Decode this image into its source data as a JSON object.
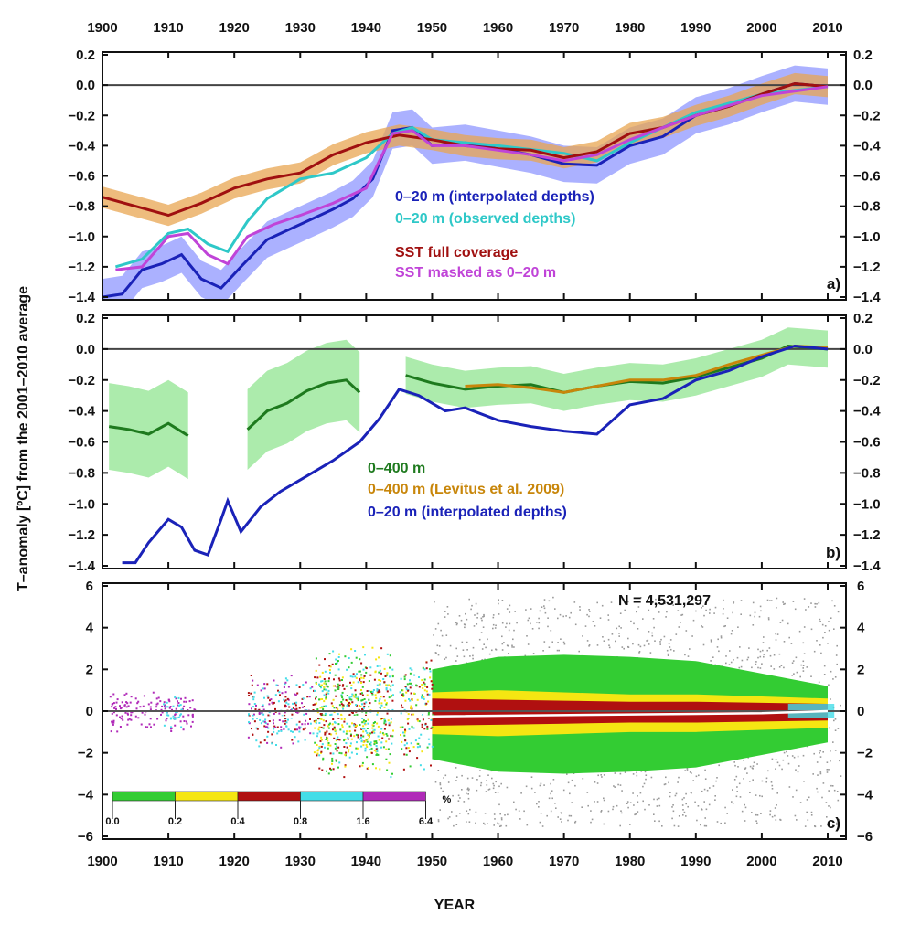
{
  "chart_data": {
    "type": "line",
    "xlabel": "YEAR",
    "ylabel": "T–anomaly [ºC] from the 2001–2010 average",
    "xlim": [
      1900,
      2010
    ],
    "x_ticks": [
      1900,
      1910,
      1920,
      1930,
      1940,
      1950,
      1960,
      1970,
      1980,
      1990,
      2000,
      2010
    ],
    "panels": [
      {
        "label": "a)",
        "ylim": [
          -1.4,
          0.2
        ],
        "y_ticks": [
          0.2,
          0.0,
          -0.2,
          -0.4,
          -0.6,
          -0.8,
          -1.0,
          -1.2,
          -1.4
        ],
        "series": [
          {
            "name": "0–20 m (interpolated depths)",
            "color": "#1a22b8",
            "band": "#8f97ff",
            "x": [
              1900,
              1903,
              1906,
              1909,
              1912,
              1915,
              1918,
              1921,
              1925,
              1930,
              1935,
              1938,
              1941,
              1944,
              1947,
              1950,
              1955,
              1960,
              1965,
              1970,
              1975,
              1980,
              1985,
              1990,
              1995,
              2000,
              2005,
              2010
            ],
            "y": [
              -1.4,
              -1.38,
              -1.22,
              -1.18,
              -1.12,
              -1.28,
              -1.34,
              -1.2,
              -1.02,
              -0.92,
              -0.82,
              -0.75,
              -0.62,
              -0.3,
              -0.28,
              -0.4,
              -0.38,
              -0.42,
              -0.46,
              -0.52,
              -0.53,
              -0.4,
              -0.34,
              -0.2,
              -0.14,
              -0.06,
              0.01,
              -0.01
            ]
          },
          {
            "name": "0–20 m (observed depths)",
            "color": "#2ec8c8",
            "x": [
              1902,
              1906,
              1910,
              1913,
              1916,
              1919,
              1922,
              1925,
              1930,
              1935,
              1940,
              1944,
              1947,
              1950,
              1960,
              1970,
              1975,
              1980,
              1990,
              2000,
              2010
            ],
            "y": [
              -1.2,
              -1.15,
              -0.98,
              -0.95,
              -1.05,
              -1.1,
              -0.9,
              -0.75,
              -0.62,
              -0.58,
              -0.48,
              -0.32,
              -0.28,
              -0.36,
              -0.4,
              -0.45,
              -0.5,
              -0.38,
              -0.18,
              -0.06,
              -0.01
            ]
          },
          {
            "name": "SST full coverage",
            "color": "#a01010",
            "band": "#e8a552",
            "x": [
              1900,
              1905,
              1910,
              1915,
              1920,
              1925,
              1930,
              1935,
              1940,
              1945,
              1950,
              1955,
              1960,
              1965,
              1970,
              1975,
              1980,
              1985,
              1990,
              1995,
              2000,
              2005,
              2010
            ],
            "y": [
              -0.74,
              -0.8,
              -0.86,
              -0.78,
              -0.68,
              -0.62,
              -0.58,
              -0.46,
              -0.38,
              -0.33,
              -0.36,
              -0.4,
              -0.42,
              -0.43,
              -0.48,
              -0.44,
              -0.32,
              -0.28,
              -0.2,
              -0.14,
              -0.06,
              0.01,
              -0.01
            ]
          },
          {
            "name": "SST masked as 0–20 m",
            "color": "#c044d8",
            "x": [
              1902,
              1906,
              1910,
              1913,
              1916,
              1919,
              1922,
              1926,
              1930,
              1935,
              1940,
              1944,
              1947,
              1950,
              1955,
              1960,
              1965,
              1970,
              1975,
              1980,
              1990,
              2000,
              2010
            ],
            "y": [
              -1.22,
              -1.2,
              -1.0,
              -0.98,
              -1.12,
              -1.18,
              -1.0,
              -0.92,
              -0.86,
              -0.78,
              -0.68,
              -0.32,
              -0.3,
              -0.4,
              -0.4,
              -0.43,
              -0.46,
              -0.5,
              -0.46,
              -0.36,
              -0.2,
              -0.07,
              -0.01
            ]
          }
        ]
      },
      {
        "label": "b)",
        "ylim": [
          -1.4,
          0.2
        ],
        "y_ticks": [
          0.2,
          0.0,
          -0.2,
          -0.4,
          -0.6,
          -0.8,
          -1.0,
          -1.2,
          -1.4
        ],
        "series": [
          {
            "name": "0–400 m",
            "color": "#1e7a1e",
            "band": "#9ee89e",
            "segments": [
              {
                "x": [
                  1901,
                  1904,
                  1907,
                  1910,
                  1913
                ],
                "y": [
                  -0.5,
                  -0.52,
                  -0.55,
                  -0.48,
                  -0.56
                ]
              },
              {
                "x": [
                  1922,
                  1925,
                  1928,
                  1931,
                  1934,
                  1937,
                  1939
                ],
                "y": [
                  -0.52,
                  -0.4,
                  -0.35,
                  -0.27,
                  -0.22,
                  -0.2,
                  -0.28
                ]
              },
              {
                "x": [
                  1946,
                  1950,
                  1955,
                  1960,
                  1965,
                  1970,
                  1975,
                  1980,
                  1985,
                  1990,
                  1995,
                  2000,
                  2004,
                  2010
                ],
                "y": [
                  -0.17,
                  -0.22,
                  -0.26,
                  -0.24,
                  -0.23,
                  -0.28,
                  -0.24,
                  -0.21,
                  -0.22,
                  -0.18,
                  -0.12,
                  -0.06,
                  0.02,
                  0.0
                ]
              }
            ]
          },
          {
            "name": "0–400 m (Levitus et al. 2009)",
            "color": "#c8860a",
            "x": [
              1955,
              1960,
              1965,
              1970,
              1975,
              1980,
              1985,
              1990,
              1995,
              2000,
              2005,
              2010
            ],
            "y": [
              -0.24,
              -0.23,
              -0.25,
              -0.28,
              -0.24,
              -0.2,
              -0.2,
              -0.17,
              -0.1,
              -0.04,
              0.02,
              0.01
            ]
          },
          {
            "name": "0–20 m (interpolated depths)",
            "color": "#1a22b8",
            "x": [
              1903,
              1905,
              1907,
              1910,
              1912,
              1914,
              1916,
              1918,
              1919,
              1921,
              1924,
              1927,
              1931,
              1935,
              1939,
              1942,
              1945,
              1948,
              1952,
              1955,
              1960,
              1965,
              1970,
              1975,
              1980,
              1985,
              1990,
              1995,
              2000,
              2005,
              2010
            ],
            "y": [
              -1.38,
              -1.38,
              -1.25,
              -1.1,
              -1.15,
              -1.3,
              -1.33,
              -1.1,
              -0.98,
              -1.18,
              -1.02,
              -0.92,
              -0.82,
              -0.72,
              -0.6,
              -0.45,
              -0.26,
              -0.3,
              -0.4,
              -0.38,
              -0.46,
              -0.5,
              -0.53,
              -0.55,
              -0.36,
              -0.32,
              -0.2,
              -0.14,
              -0.05,
              0.02,
              0.0
            ]
          }
        ]
      },
      {
        "label": "c)",
        "ylim": [
          -6,
          6
        ],
        "y_ticks": [
          6,
          4,
          2,
          0,
          -2,
          -4,
          -6
        ],
        "annotation": "N = 4,531,297",
        "colorbar": {
          "unit": "%",
          "labels": [
            "0.0",
            "0.2",
            "0.4",
            "0.8",
            "1.6",
            "6.4"
          ],
          "colors": [
            "#33cc33",
            "#f5e612",
            "#b01010",
            "#44dde8",
            "#b02ab8"
          ]
        }
      }
    ]
  }
}
